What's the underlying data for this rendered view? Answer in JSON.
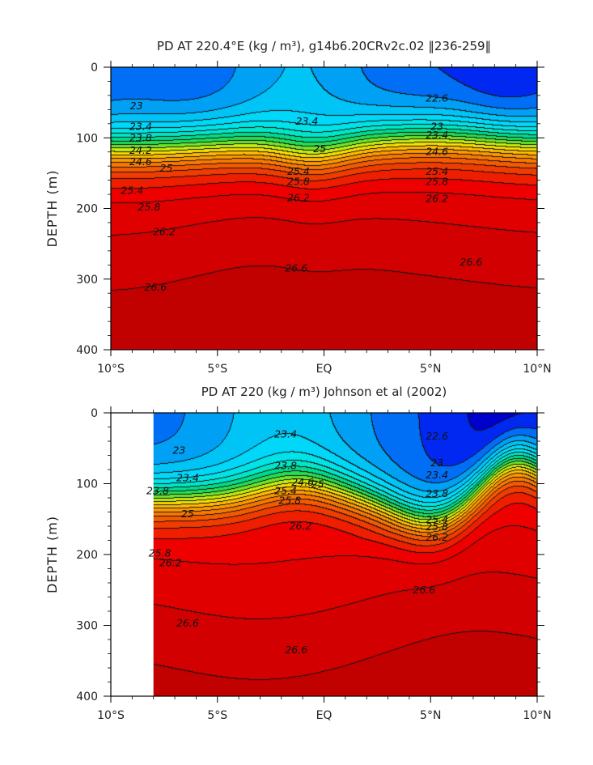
{
  "chart_data": [
    {
      "type": "contour",
      "title": "PD AT 220.4°E (kg / m³), g14b6.20CRv2c.02 ‖236-259‖",
      "xlabel": "",
      "ylabel": "DEPTH (m)",
      "xlim": [
        -10,
        10
      ],
      "ylim": [
        400,
        0
      ],
      "x_ticks": [
        -10,
        -5,
        0,
        5,
        10
      ],
      "x_tick_labels": [
        "10°S",
        "5°S",
        "EQ",
        "5°N",
        "10°N"
      ],
      "y_ticks": [
        0,
        100,
        200,
        300,
        400
      ],
      "y_tick_labels": [
        "0",
        "100",
        "200",
        "300",
        "400"
      ],
      "data_extent_x": [
        -10,
        10
      ],
      "contour_interval": 0.2,
      "value_range": [
        22.0,
        27.0
      ],
      "contour_labels": [
        {
          "text": "23",
          "lat": -8.8,
          "depth": 55
        },
        {
          "text": "23.4",
          "lat": -8.6,
          "depth": 84
        },
        {
          "text": "23.8",
          "lat": -8.6,
          "depth": 100
        },
        {
          "text": "24.2",
          "lat": -8.6,
          "depth": 118
        },
        {
          "text": "24.6",
          "lat": -8.6,
          "depth": 134
        },
        {
          "text": "25",
          "lat": -7.4,
          "depth": 143
        },
        {
          "text": "25.4",
          "lat": -9.0,
          "depth": 175
        },
        {
          "text": "25.8",
          "lat": -8.2,
          "depth": 198
        },
        {
          "text": "26.2",
          "lat": -7.5,
          "depth": 233
        },
        {
          "text": "26.6",
          "lat": -7.9,
          "depth": 312
        },
        {
          "text": "26.6",
          "lat": -1.3,
          "depth": 285
        },
        {
          "text": "26.6",
          "lat": 6.9,
          "depth": 276
        },
        {
          "text": "23.4",
          "lat": -0.8,
          "depth": 77
        },
        {
          "text": "25.4",
          "lat": -1.2,
          "depth": 148
        },
        {
          "text": "25.8",
          "lat": -1.2,
          "depth": 162
        },
        {
          "text": "26.2",
          "lat": -1.2,
          "depth": 185
        },
        {
          "text": "25",
          "lat": -0.2,
          "depth": 116
        },
        {
          "text": "22.6",
          "lat": 5.3,
          "depth": 44
        },
        {
          "text": "23",
          "lat": 5.3,
          "depth": 84
        },
        {
          "text": "23.4",
          "lat": 5.3,
          "depth": 96
        },
        {
          "text": "24.6",
          "lat": 5.3,
          "depth": 120
        },
        {
          "text": "25.4",
          "lat": 5.3,
          "depth": 148
        },
        {
          "text": "25.8",
          "lat": 5.3,
          "depth": 162
        },
        {
          "text": "26.2",
          "lat": 5.3,
          "depth": 186
        }
      ]
    },
    {
      "type": "contour",
      "title": "PD AT 220 (kg / m³) Johnson et al (2002)",
      "xlabel": "",
      "ylabel": "DEPTH (m)",
      "xlim": [
        -10,
        10
      ],
      "ylim": [
        400,
        0
      ],
      "x_ticks": [
        -10,
        -5,
        0,
        5,
        10
      ],
      "x_tick_labels": [
        "10°S",
        "5°S",
        "EQ",
        "5°N",
        "10°N"
      ],
      "y_ticks": [
        0,
        100,
        200,
        300,
        400
      ],
      "y_tick_labels": [
        "0",
        "100",
        "200",
        "300",
        "400"
      ],
      "data_extent_x": [
        -8,
        10
      ],
      "contour_interval": 0.2,
      "value_range": [
        22.0,
        27.0
      ],
      "contour_labels": [
        {
          "text": "23",
          "lat": -6.8,
          "depth": 53
        },
        {
          "text": "23.4",
          "lat": -6.4,
          "depth": 92
        },
        {
          "text": "23.8",
          "lat": -7.8,
          "depth": 110
        },
        {
          "text": "25",
          "lat": -6.4,
          "depth": 143
        },
        {
          "text": "25.8",
          "lat": -7.7,
          "depth": 198
        },
        {
          "text": "26.2",
          "lat": -7.2,
          "depth": 212
        },
        {
          "text": "26.6",
          "lat": -6.4,
          "depth": 297
        },
        {
          "text": "26.6",
          "lat": -1.3,
          "depth": 335
        },
        {
          "text": "26.6",
          "lat": 4.7,
          "depth": 250
        },
        {
          "text": "23.4",
          "lat": -1.8,
          "depth": 30
        },
        {
          "text": "23.8",
          "lat": -1.8,
          "depth": 75
        },
        {
          "text": "24.6",
          "lat": -1.0,
          "depth": 98
        },
        {
          "text": "25",
          "lat": -0.3,
          "depth": 101
        },
        {
          "text": "25.4",
          "lat": -1.8,
          "depth": 110
        },
        {
          "text": "25.8",
          "lat": -1.6,
          "depth": 124
        },
        {
          "text": "26.2",
          "lat": -1.1,
          "depth": 160
        },
        {
          "text": "22.6",
          "lat": 5.3,
          "depth": 33
        },
        {
          "text": "23",
          "lat": 5.3,
          "depth": 71
        },
        {
          "text": "23.4",
          "lat": 5.3,
          "depth": 88
        },
        {
          "text": "23.8",
          "lat": 5.3,
          "depth": 114
        },
        {
          "text": "25.4",
          "lat": 5.3,
          "depth": 151
        },
        {
          "text": "25.8",
          "lat": 5.3,
          "depth": 161
        },
        {
          "text": "26.2",
          "lat": 5.3,
          "depth": 176
        }
      ]
    }
  ]
}
